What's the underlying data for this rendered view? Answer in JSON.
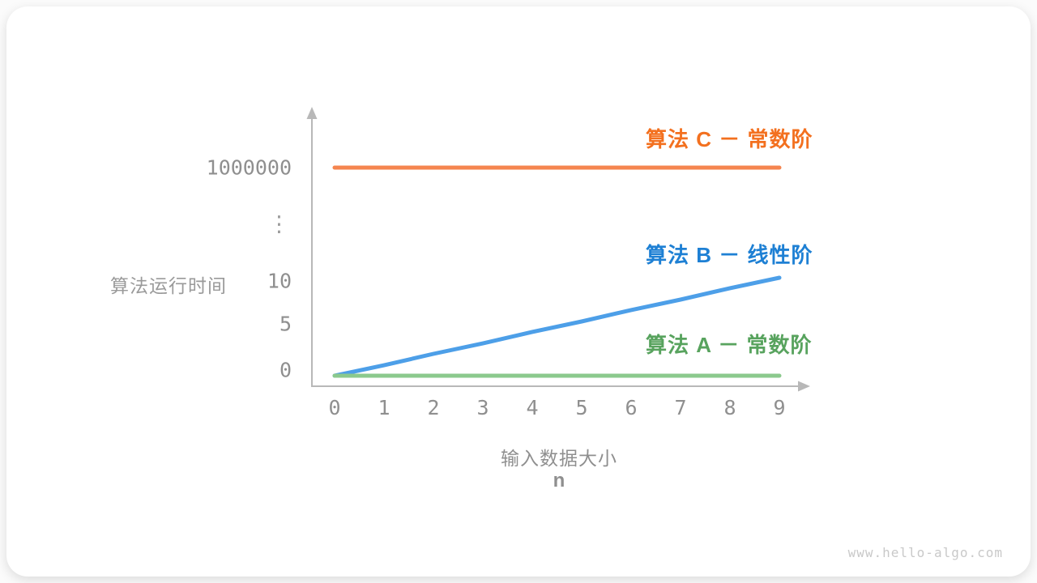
{
  "watermark": "www.hello-algo.com",
  "chart_data": {
    "type": "line",
    "title": "",
    "xlabel": "输入数据大小",
    "xlabel_symbol": "n",
    "ylabel": "算法运行时间",
    "x": [
      0,
      1,
      2,
      3,
      4,
      5,
      6,
      7,
      8,
      9
    ],
    "x_tick_labels": [
      "0",
      "1",
      "2",
      "3",
      "4",
      "5",
      "6",
      "7",
      "8",
      "9"
    ],
    "y_tick_labels": [
      "0",
      "5",
      "10",
      "⋮",
      "1000000"
    ],
    "y_axis_break": true,
    "grid": false,
    "legend_position": "right-of-lines",
    "axis_color": "#b8b8b8",
    "tick_color": "#8f8f8f",
    "series": [
      {
        "name": "算法 C － 常数阶",
        "color": "#F5854F",
        "label_color": "#F3701F",
        "values": [
          1000000,
          1000000,
          1000000,
          1000000,
          1000000,
          1000000,
          1000000,
          1000000,
          1000000,
          1000000
        ]
      },
      {
        "name": "算法 B － 线性阶",
        "color": "#4D9FE8",
        "label_color": "#1E80D4",
        "values": [
          0,
          1.1,
          2.3,
          3.4,
          4.6,
          5.7,
          6.9,
          8.0,
          9.2,
          10.3
        ]
      },
      {
        "name": "算法 A － 常数阶",
        "color": "#8BC98D",
        "label_color": "#58A35E",
        "values": [
          0,
          0,
          0,
          0,
          0,
          0,
          0,
          0,
          0,
          0
        ]
      }
    ]
  }
}
